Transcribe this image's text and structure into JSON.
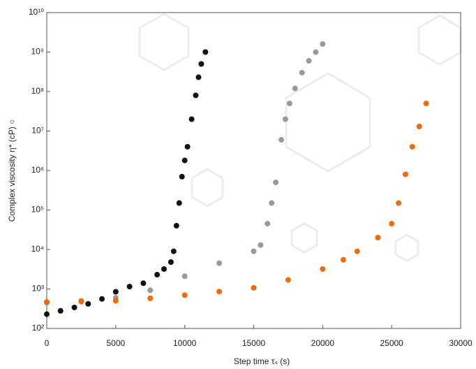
{
  "chart_data": {
    "type": "scatter",
    "xlabel": "Step time τₛ (s)",
    "ylabel": "Complex viscosity η* (cP) ○",
    "xlim": [
      0,
      30000
    ],
    "xticks": [
      0,
      5000,
      10000,
      15000,
      20000,
      25000,
      30000
    ],
    "ylim": [
      100,
      10000000000
    ],
    "log_y": true,
    "yticks": [
      {
        "value": 100,
        "label": "10²"
      },
      {
        "value": 1000,
        "label": "10³"
      },
      {
        "value": 10000,
        "label": "10⁴"
      },
      {
        "value": 100000,
        "label": "10⁵"
      },
      {
        "value": 1000000,
        "label": "10⁶"
      },
      {
        "value": 10000000,
        "label": "10⁷"
      },
      {
        "value": 100000000,
        "label": "10⁸"
      },
      {
        "value": 1000000000,
        "label": "10⁹"
      },
      {
        "value": 10000000000,
        "label": "10¹⁰"
      }
    ],
    "series": [
      {
        "color": "#111111",
        "x": [
          0,
          1000,
          2000,
          3000,
          4000,
          5000,
          6000,
          7000,
          8000,
          8500,
          9000,
          9200,
          9400,
          9600,
          9800,
          10000,
          10200,
          10500,
          10800,
          11000,
          11200,
          11500
        ],
        "values": [
          230,
          280,
          340,
          420,
          560,
          850,
          1150,
          1400,
          2300,
          3200,
          4800,
          9000,
          40000,
          150000,
          700000,
          1800000,
          4000000,
          20000000,
          80000000,
          230000000,
          500000000,
          1000000000
        ]
      },
      {
        "color": "#999999",
        "x": [
          0,
          2500,
          5000,
          7500,
          10000,
          12500,
          15000,
          15500,
          16000,
          16300,
          16600,
          17000,
          17300,
          17600,
          18000,
          18500,
          19000,
          19500,
          20000
        ],
        "values": [
          450,
          500,
          600,
          930,
          2100,
          4500,
          9000,
          13000,
          45000,
          150000,
          500000,
          6000000,
          20000000,
          50000000,
          120000000,
          300000000,
          600000000,
          1000000000,
          1600000000
        ]
      },
      {
        "color": "#f26a0d",
        "x": [
          0,
          2500,
          5000,
          7500,
          10000,
          12500,
          15000,
          17500,
          20000,
          21500,
          22500,
          24000,
          25000,
          25500,
          26000,
          26500,
          27000,
          27500
        ],
        "values": [
          470,
          480,
          500,
          580,
          700,
          860,
          1070,
          1700,
          3200,
          5500,
          9000,
          20000,
          45000,
          150000,
          800000,
          4000000,
          13000000,
          50000000
        ]
      }
    ]
  }
}
